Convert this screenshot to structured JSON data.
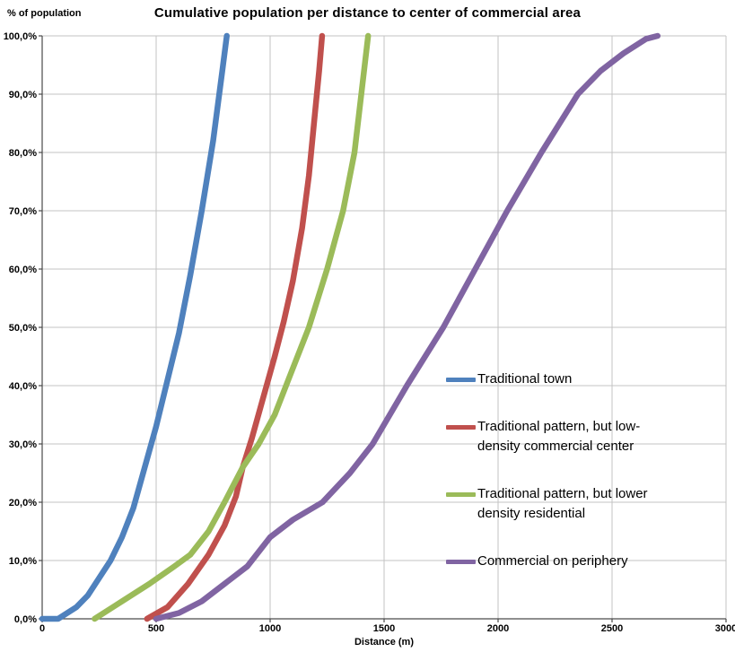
{
  "chart_data": {
    "type": "line",
    "title": "Cumulative population per distance to center of commercial area",
    "xlabel": "Distance (m)",
    "ylabel": "% of population",
    "xlim": [
      0,
      3000
    ],
    "ylim": [
      0,
      100
    ],
    "x_ticks": [
      0,
      500,
      1000,
      1500,
      2000,
      2500,
      3000
    ],
    "y_ticks": [
      {
        "value": 0,
        "label": "0,0%"
      },
      {
        "value": 10,
        "label": "10,0%"
      },
      {
        "value": 20,
        "label": "20,0%"
      },
      {
        "value": 30,
        "label": "30,0%"
      },
      {
        "value": 40,
        "label": "40,0%"
      },
      {
        "value": 50,
        "label": "50,0%"
      },
      {
        "value": 60,
        "label": "60,0%"
      },
      {
        "value": 70,
        "label": "70,0%"
      },
      {
        "value": 80,
        "label": "80,0%"
      },
      {
        "value": 90,
        "label": "90,0%"
      },
      {
        "value": 100,
        "label": "100,0%"
      }
    ],
    "grid": true,
    "legend_position": "inside-right",
    "colors": {
      "grid": "#C3C3C3",
      "axis": "#4A4A4A",
      "text": "#000000",
      "background": "#FFFFFF"
    },
    "series": [
      {
        "name": "Traditional town",
        "color": "#4F81BD",
        "points": [
          [
            0,
            0
          ],
          [
            70,
            0
          ],
          [
            150,
            2
          ],
          [
            200,
            4
          ],
          [
            250,
            7
          ],
          [
            300,
            10
          ],
          [
            350,
            14
          ],
          [
            400,
            19
          ],
          [
            450,
            26
          ],
          [
            500,
            33
          ],
          [
            550,
            41
          ],
          [
            600,
            49
          ],
          [
            650,
            59
          ],
          [
            700,
            70
          ],
          [
            750,
            82
          ],
          [
            790,
            94
          ],
          [
            810,
            100
          ]
        ]
      },
      {
        "name": "Traditional pattern, but low-density commercial center",
        "color": "#C0504D",
        "points": [
          [
            460,
            0
          ],
          [
            550,
            2
          ],
          [
            640,
            6
          ],
          [
            730,
            11
          ],
          [
            800,
            16
          ],
          [
            850,
            21
          ],
          [
            880,
            26
          ],
          [
            920,
            31
          ],
          [
            970,
            38
          ],
          [
            1020,
            45
          ],
          [
            1060,
            51
          ],
          [
            1100,
            58
          ],
          [
            1140,
            67
          ],
          [
            1170,
            76
          ],
          [
            1195,
            86
          ],
          [
            1215,
            94
          ],
          [
            1228,
            100
          ]
        ]
      },
      {
        "name": "Traditional pattern, but lower density residential",
        "color": "#9BBB59",
        "points": [
          [
            230,
            0
          ],
          [
            350,
            3
          ],
          [
            470,
            6
          ],
          [
            580,
            9
          ],
          [
            650,
            11
          ],
          [
            730,
            15
          ],
          [
            800,
            20
          ],
          [
            880,
            26
          ],
          [
            950,
            30
          ],
          [
            1020,
            35
          ],
          [
            1080,
            41
          ],
          [
            1170,
            50
          ],
          [
            1250,
            60
          ],
          [
            1320,
            70
          ],
          [
            1370,
            80
          ],
          [
            1400,
            90
          ],
          [
            1430,
            100
          ]
        ]
      },
      {
        "name": "Commercial on periphery",
        "color": "#8064A2",
        "points": [
          [
            500,
            0
          ],
          [
            600,
            1
          ],
          [
            700,
            3
          ],
          [
            800,
            6
          ],
          [
            900,
            9
          ],
          [
            1000,
            14
          ],
          [
            1100,
            17
          ],
          [
            1230,
            20
          ],
          [
            1350,
            25
          ],
          [
            1450,
            30
          ],
          [
            1600,
            40
          ],
          [
            1760,
            50
          ],
          [
            1900,
            60
          ],
          [
            2040,
            70
          ],
          [
            2190,
            80
          ],
          [
            2350,
            90
          ],
          [
            2450,
            94
          ],
          [
            2550,
            97
          ],
          [
            2650,
            99.5
          ],
          [
            2700,
            100
          ]
        ]
      }
    ]
  }
}
